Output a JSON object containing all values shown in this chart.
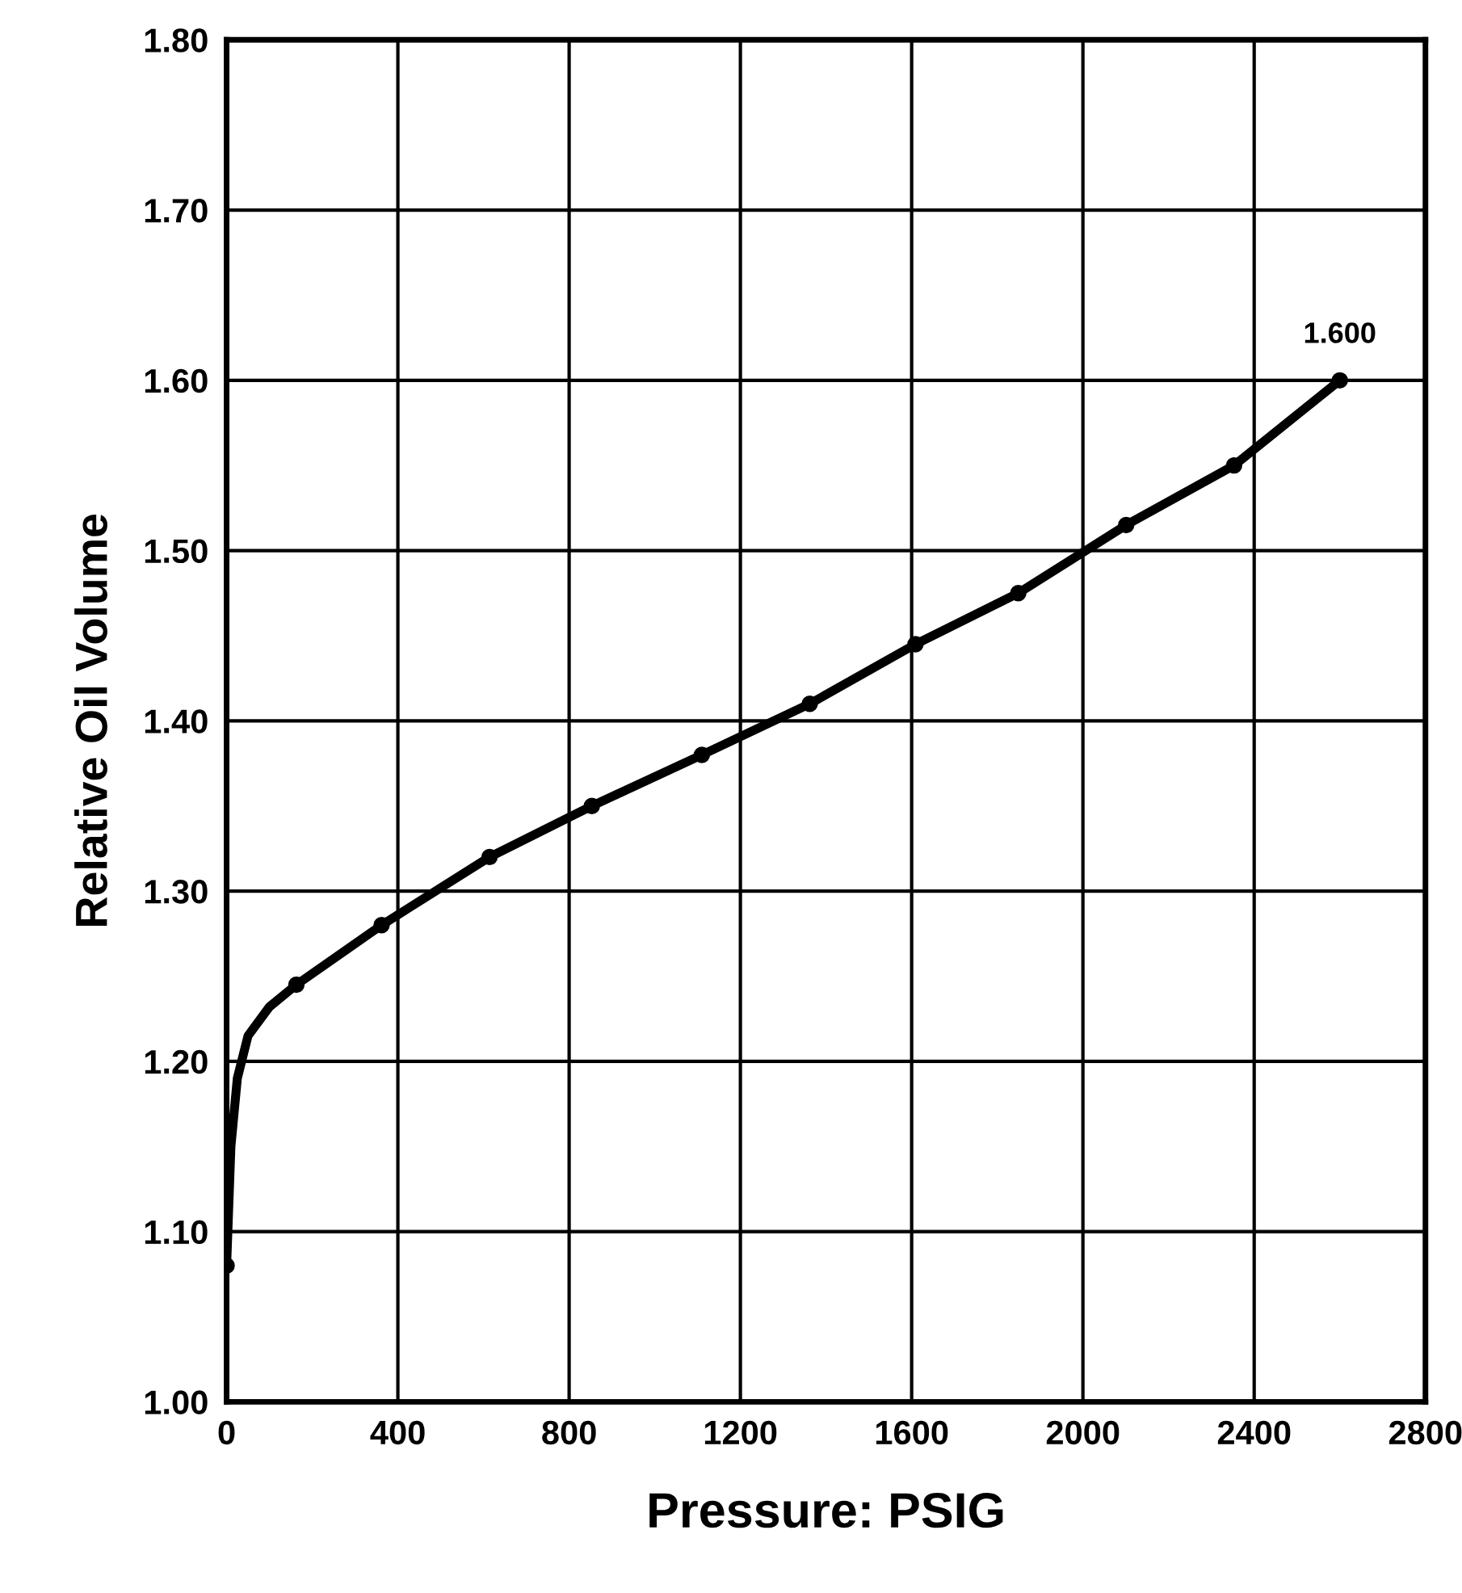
{
  "chart_data": {
    "type": "line",
    "xlabel": "Pressure: PSIG",
    "ylabel": "Relative Oil Volume",
    "xlim": [
      0,
      2800
    ],
    "xticks": [
      0,
      400,
      800,
      1200,
      1600,
      2000,
      2400,
      2800
    ],
    "ylim": [
      1.0,
      1.8
    ],
    "yticks": [
      {
        "value": 1.0,
        "label": "1.00"
      },
      {
        "value": 1.1,
        "label": "1.10"
      },
      {
        "value": 1.2,
        "label": "1.20"
      },
      {
        "value": 1.3,
        "label": "1.30"
      },
      {
        "value": 1.4,
        "label": "1.40"
      },
      {
        "value": 1.5,
        "label": "1.50"
      },
      {
        "value": 1.6,
        "label": "1.60"
      },
      {
        "value": 1.7,
        "label": "1.70"
      },
      {
        "value": 1.8,
        "label": "1.80"
      }
    ],
    "grid": true,
    "series": [
      {
        "color": "#000000",
        "marker": "none",
        "x": [
          0,
          10,
          25,
          50,
          100,
          163,
          362,
          614,
          853,
          1110,
          1362,
          1609,
          1849,
          2101,
          2353,
          2600
        ],
        "values": [
          1.08,
          1.15,
          1.19,
          1.215,
          1.232,
          1.245,
          1.28,
          1.32,
          1.35,
          1.38,
          1.41,
          1.445,
          1.475,
          1.515,
          1.55,
          1.6
        ]
      },
      {
        "type": "scatter",
        "color": "#000000",
        "marker": "circle",
        "x": [
          0,
          163,
          362,
          614,
          853,
          1110,
          1362,
          1609,
          1849,
          2101,
          2353,
          2600
        ],
        "values": [
          1.08,
          1.245,
          1.28,
          1.32,
          1.35,
          1.38,
          1.41,
          1.445,
          1.475,
          1.515,
          1.55,
          1.6
        ]
      }
    ],
    "annotations": [
      {
        "text": "1.600",
        "x": 2600,
        "y": 1.6
      }
    ]
  }
}
